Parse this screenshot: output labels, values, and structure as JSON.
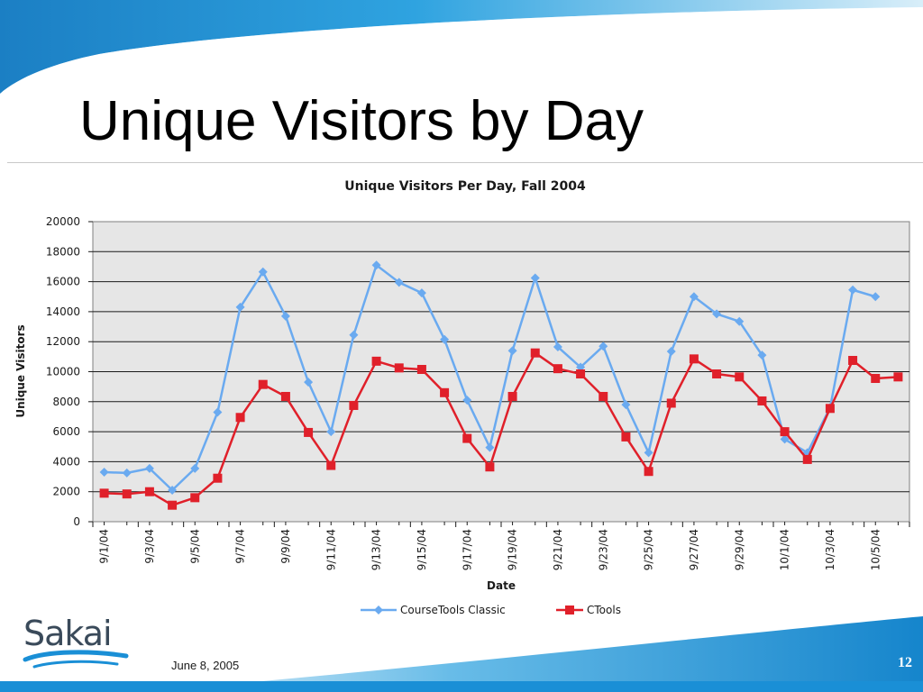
{
  "slide": {
    "title": "Unique Visitors by Day",
    "footer_date": "June 8, 2005",
    "page_number": "12",
    "logo_text": "Sakai"
  },
  "colors": {
    "accent": "#1a8fd6",
    "series_classic": "#6aaaf0",
    "series_ctools": "#e0202a",
    "plot_bg": "#e6e6e6"
  },
  "chart_data": {
    "type": "line",
    "title": "Unique Visitors Per Day, Fall 2004",
    "xlabel": "Date",
    "ylabel": "Unique Visitors",
    "ylim": [
      0,
      20000
    ],
    "yticks": [
      0,
      2000,
      4000,
      6000,
      8000,
      10000,
      12000,
      14000,
      16000,
      18000,
      20000
    ],
    "grid": true,
    "legend": "bottom",
    "x": [
      "9/1/04",
      "9/2/04",
      "9/3/04",
      "9/4/04",
      "9/5/04",
      "9/6/04",
      "9/7/04",
      "9/8/04",
      "9/9/04",
      "9/10/04",
      "9/11/04",
      "9/12/04",
      "9/13/04",
      "9/14/04",
      "9/15/04",
      "9/16/04",
      "9/17/04",
      "9/18/04",
      "9/19/04",
      "9/20/04",
      "9/21/04",
      "9/22/04",
      "9/23/04",
      "9/24/04",
      "9/25/04",
      "9/26/04",
      "9/27/04",
      "9/28/04",
      "9/29/04",
      "9/30/04",
      "10/1/04",
      "10/2/04",
      "10/3/04",
      "10/4/04",
      "10/5/04",
      "10/6/04"
    ],
    "xtick_labels": [
      "9/1/04",
      "9/3/04",
      "9/5/04",
      "9/7/04",
      "9/9/04",
      "9/11/04",
      "9/13/04",
      "9/15/04",
      "9/17/04",
      "9/19/04",
      "9/21/04",
      "9/23/04",
      "9/25/04",
      "9/27/04",
      "9/29/04",
      "10/1/04",
      "10/3/04",
      "10/5/04"
    ],
    "series": [
      {
        "name": "CourseTools Classic",
        "marker": "diamond",
        "values": [
          3300,
          3250,
          3550,
          2100,
          3550,
          7300,
          14300,
          16650,
          13700,
          9300,
          6000,
          12450,
          17100,
          15950,
          15250,
          12150,
          8100,
          4950,
          11400,
          16250,
          11650,
          10300,
          11700,
          7800,
          4600,
          11350,
          15000,
          13850,
          13350,
          11100,
          5500,
          4600,
          7600,
          15450,
          15000,
          null
        ]
      },
      {
        "name": "CTools",
        "marker": "square",
        "values": [
          1900,
          1850,
          2000,
          1100,
          1600,
          2900,
          6950,
          9150,
          8350,
          5950,
          3750,
          7750,
          10700,
          10250,
          10150,
          8600,
          5550,
          3650,
          8350,
          11250,
          10200,
          9850,
          8350,
          5650,
          3350,
          7900,
          10850,
          9850,
          9650,
          8050,
          6000,
          4150,
          7550,
          10750,
          9550,
          9650
        ]
      }
    ]
  }
}
